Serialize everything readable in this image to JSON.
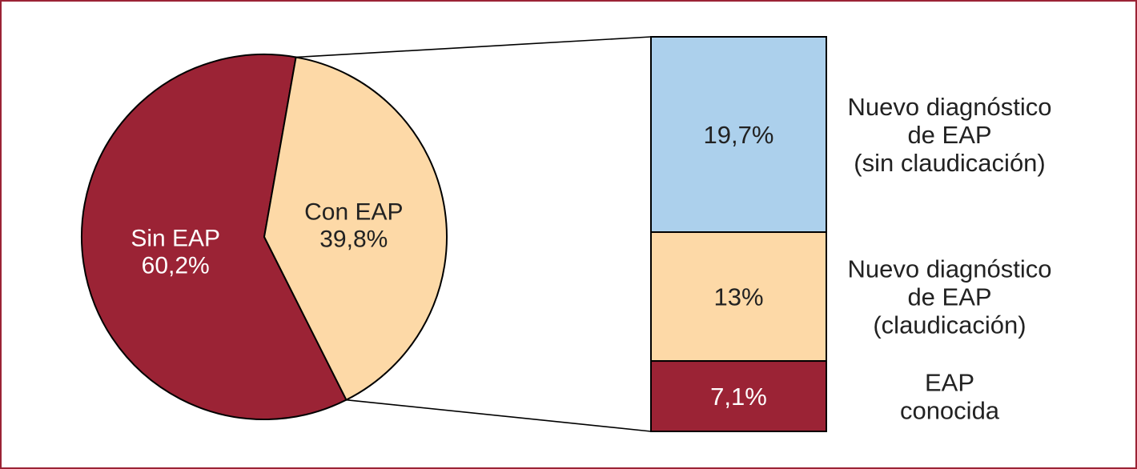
{
  "chart_data": [
    {
      "type": "pie",
      "slices": [
        {
          "label": "Sin EAP",
          "display": "60,2%",
          "value": 60.2,
          "color": "#9b2335",
          "text_color": "#ffffff"
        },
        {
          "label": "Con EAP",
          "display": "39,8%",
          "value": 39.8,
          "color": "#fdd9a7",
          "text_color": "#222222"
        }
      ],
      "exploded_slice": "Con EAP"
    },
    {
      "type": "bar",
      "stacked": true,
      "breakdown_of": "Con EAP",
      "segments": [
        {
          "label": "Nuevo diagnóstico de EAP (sin claudicación)",
          "label_lines": [
            "Nuevo diagnóstico",
            "de EAP",
            "(sin claudicación)"
          ],
          "display": "19,7%",
          "value": 19.7,
          "color": "#acd0ec",
          "text_color": "#222222"
        },
        {
          "label": "Nuevo diagnóstico de EAP (claudicación)",
          "label_lines": [
            "Nuevo diagnóstico",
            "de EAP",
            "(claudicación)"
          ],
          "display": "13%",
          "value": 13,
          "color": "#fdd9a7",
          "text_color": "#222222"
        },
        {
          "label": "EAP conocida",
          "label_lines": [
            "EAP",
            "conocida"
          ],
          "display": "7,1%",
          "value": 7.1,
          "color": "#9b2335",
          "text_color": "#ffffff"
        }
      ]
    }
  ],
  "colors": {
    "border": "#9b2335",
    "outline": "#000000"
  }
}
